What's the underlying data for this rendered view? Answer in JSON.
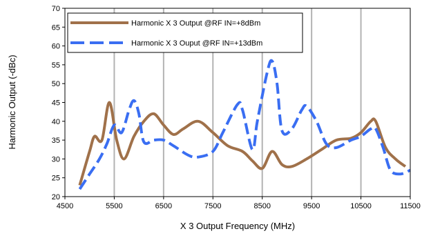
{
  "chart_data": {
    "type": "line",
    "title": "",
    "xlabel": "X 3 Output Frequency (MHz)",
    "ylabel": "Harmonic Output (-dBc)",
    "xlim": [
      4500,
      11500
    ],
    "ylim": [
      20,
      70
    ],
    "xticks": [
      "4500",
      "5500",
      "6500",
      "7500",
      "8500",
      "9500",
      "10500",
      "11500"
    ],
    "yticks": [
      "20",
      "25",
      "30",
      "35",
      "40",
      "45",
      "50",
      "55",
      "60",
      "65",
      "70"
    ],
    "grid": "vertical",
    "legend_position": "top-left",
    "series": [
      {
        "name": "Harmonic X 3 Output @RF IN=+8dBm",
        "color": "#a0714a",
        "style": "solid",
        "x": [
          4800,
          5000,
          5100,
          5250,
          5400,
          5550,
          5700,
          5900,
          6100,
          6300,
          6500,
          6700,
          6900,
          7200,
          7500,
          7800,
          8100,
          8300,
          8500,
          8700,
          8900,
          9100,
          9400,
          9700,
          10000,
          10300,
          10500,
          10700,
          10800,
          11000,
          11200,
          11400
        ],
        "y": [
          23,
          32,
          36,
          35,
          45,
          35,
          30,
          36,
          40,
          42,
          39,
          36.5,
          38,
          40,
          37,
          33.5,
          32,
          29.5,
          27.5,
          32,
          28.5,
          28,
          30,
          32.5,
          35,
          35.5,
          37,
          40,
          40,
          33,
          30,
          28
        ]
      },
      {
        "name": "Harmonic X 3 Ouput @RF IN=+13dBm",
        "color": "#3a6ef2",
        "style": "dashed",
        "x": [
          4800,
          5000,
          5200,
          5350,
          5500,
          5650,
          5800,
          5900,
          6000,
          6100,
          6300,
          6500,
          6700,
          7000,
          7200,
          7500,
          7700,
          8000,
          8100,
          8300,
          8400,
          8600,
          8700,
          8800,
          8900,
          9100,
          9300,
          9400,
          9600,
          9800,
          10000,
          10300,
          10500,
          10700,
          10800,
          10950,
          11100,
          11300,
          11500
        ],
        "y": [
          22,
          26,
          30,
          34,
          39,
          37,
          43,
          45.5,
          42,
          34.5,
          35,
          35,
          33.5,
          31,
          30.5,
          32,
          37,
          44.5,
          43,
          32.5,
          40,
          53,
          56,
          50,
          37.5,
          38,
          43,
          44,
          40,
          34,
          33,
          35,
          36,
          38,
          38,
          33,
          27,
          26,
          27
        ]
      }
    ]
  }
}
